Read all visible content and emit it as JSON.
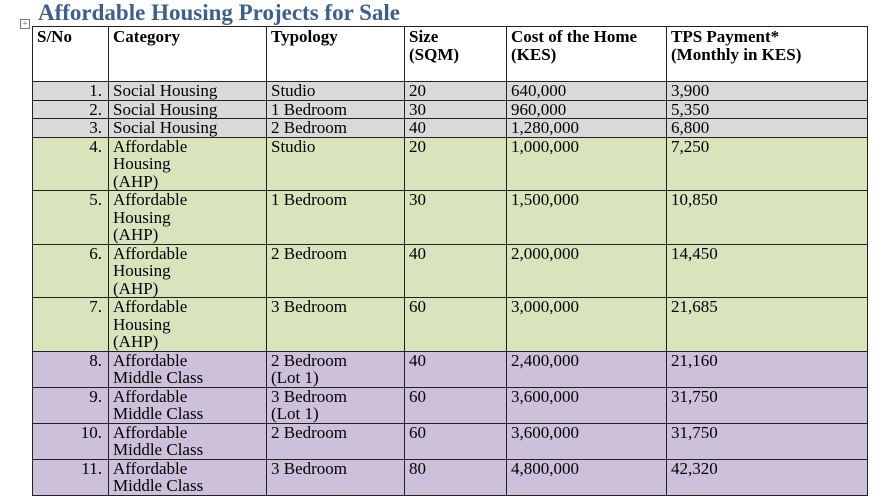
{
  "title": "Affordable Housing Projects for Sale",
  "table": {
    "header": [
      "S/No",
      "Category",
      "Typology",
      "Size (SQM)",
      "Cost of the Home (KES)",
      "TPS Payment* (Monthly in KES)"
    ],
    "rows": [
      [
        "1.",
        "Social Housing",
        "Studio",
        "20",
        "640,000",
        "3,900"
      ],
      [
        "2.",
        "Social Housing",
        "1 Bedroom",
        "30",
        "960,000",
        "5,350"
      ],
      [
        "3.",
        "Social Housing",
        "2 Bedroom",
        "40",
        "1,280,000",
        "6,800"
      ],
      [
        "4.",
        "Affordable Housing (AHP)",
        "Studio",
        "20",
        "1,000,000",
        "7,250"
      ],
      [
        "5.",
        "Affordable Housing (AHP)",
        "1 Bedroom",
        "30",
        "1,500,000",
        "10,850"
      ],
      [
        "6.",
        "Affordable Housing (AHP)",
        "2 Bedroom",
        "40",
        "2,000,000",
        "14,450"
      ],
      [
        "7.",
        "Affordable Housing (AHP)",
        "3 Bedroom",
        "60",
        "3,000,000",
        "21,685"
      ],
      [
        "8.",
        "Affordable Middle Class",
        "2 Bedroom (Lot 1)",
        "40",
        "2,400,000",
        "21,160"
      ],
      [
        "9.",
        "Affordable Middle Class",
        "3 Bedroom (Lot 1)",
        "60",
        "3,600,000",
        "31,750"
      ],
      [
        "10.",
        "Affordable Middle Class",
        "2 Bedroom",
        "60",
        "3,600,000",
        "31,750"
      ],
      [
        "11.",
        "Affordable Middle Class",
        "3 Bedroom",
        "80",
        "4,800,000",
        "42,320"
      ]
    ]
  }
}
